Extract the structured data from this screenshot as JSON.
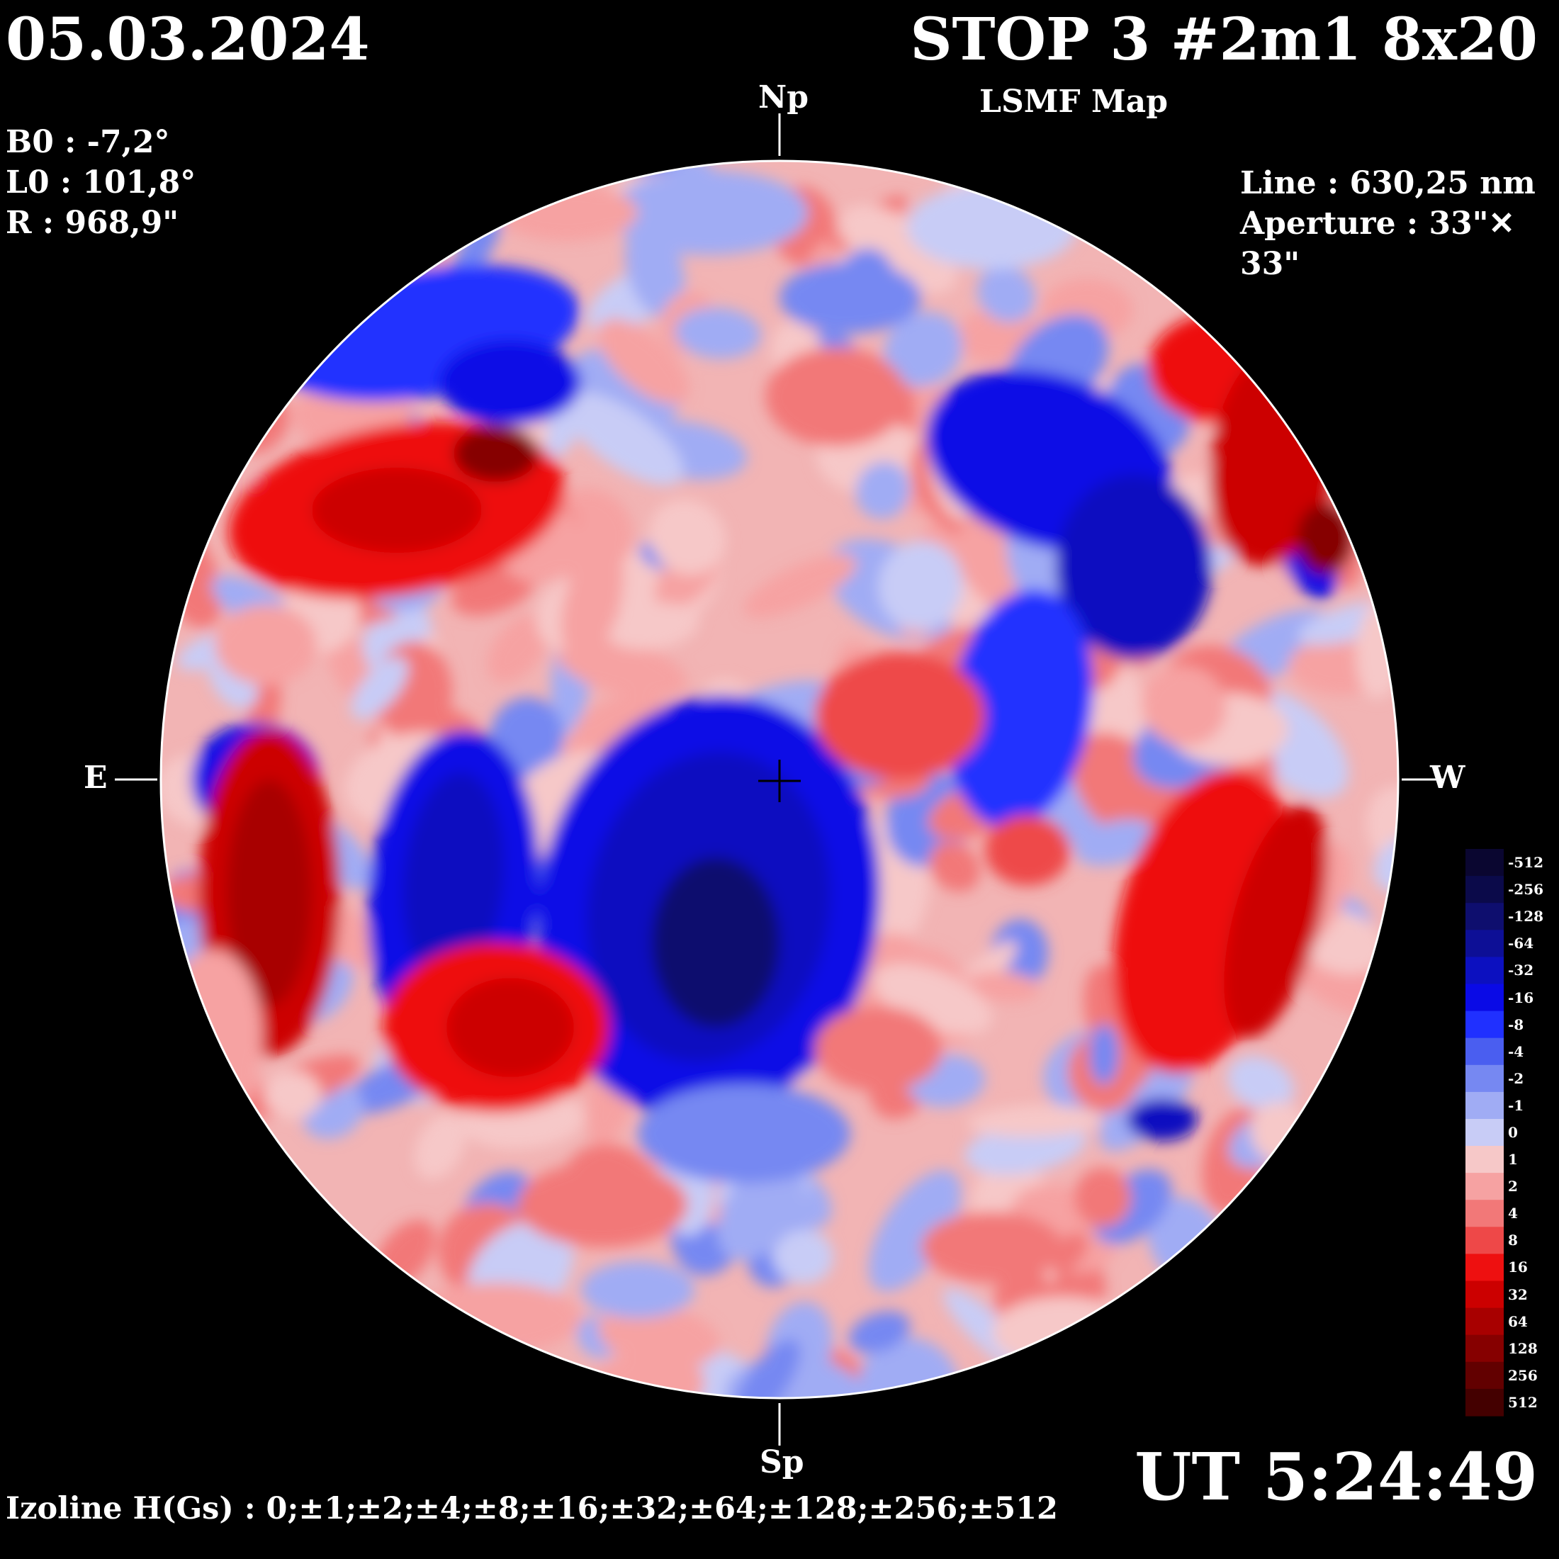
{
  "header": {
    "date": "05.03.2024",
    "title": "STOP 3 #2m1 8x20",
    "subtitle": "LSMF  Map"
  },
  "params": {
    "b0": "B0 : -7,2°",
    "l0": "L0 : 101,8°",
    "r": "R  : 968,9\""
  },
  "instrument": {
    "line": "Line :  630,25 nm",
    "aperture": "Aperture : 33\"✕ 33\""
  },
  "directions": {
    "north": "Np",
    "south": "Sp",
    "east": "E",
    "west": "W"
  },
  "time": "UT 5:24:49",
  "izoline": "Izoline H(Gs) : 0;±1;±2;±4;±8;±16;±32;±64;±128;±256;±512",
  "colorbar": {
    "labels": [
      "-512",
      "-256",
      "-128",
      "-64",
      "-32",
      "-16",
      "-8",
      "-4",
      "-2",
      "-1",
      "0",
      "1",
      "2",
      "4",
      "8",
      "16",
      "32",
      "64",
      "128",
      "256",
      "512"
    ],
    "colors": [
      "#0a0630",
      "#0b0a4a",
      "#0e0e6e",
      "#0d0f96",
      "#0c10c0",
      "#0a0ae6",
      "#2030ff",
      "#4a5ef0",
      "#7688f2",
      "#a0acf4",
      "#c8ccf6",
      "#f6c8c8",
      "#f6a2a2",
      "#f27878",
      "#ee4848",
      "#ee1010",
      "#cc0000",
      "#a80000",
      "#860000",
      "#620000",
      "#440000"
    ]
  }
}
